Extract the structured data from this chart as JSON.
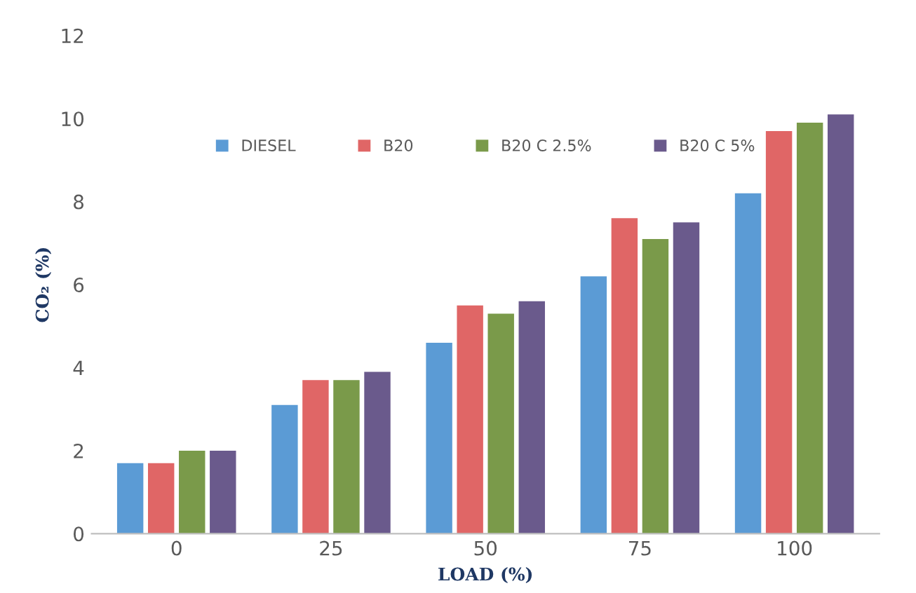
{
  "chart_data": {
    "type": "bar",
    "xlabel": "LOAD (%)",
    "ylabel": "CO₂ (%)",
    "categories": [
      "0",
      "25",
      "50",
      "75",
      "100"
    ],
    "series": [
      {
        "name": "DIESEL",
        "color": "#5b9bd5",
        "values": [
          1.7,
          3.1,
          4.6,
          6.2,
          8.2
        ]
      },
      {
        "name": "B20",
        "color": "#e06666",
        "values": [
          1.7,
          3.7,
          5.5,
          7.6,
          9.7
        ]
      },
      {
        "name": "B20 C 2.5%",
        "color": "#7a9a4a",
        "values": [
          2.0,
          3.7,
          5.3,
          7.1,
          9.9
        ]
      },
      {
        "name": "B20 C 5%",
        "color": "#6a5a8c",
        "values": [
          2.0,
          3.9,
          5.6,
          7.5,
          10.1
        ]
      }
    ],
    "ylim": [
      0,
      12
    ],
    "yticks": [
      0,
      2,
      4,
      6,
      8,
      10,
      12
    ],
    "grid": false,
    "legend": "top"
  }
}
